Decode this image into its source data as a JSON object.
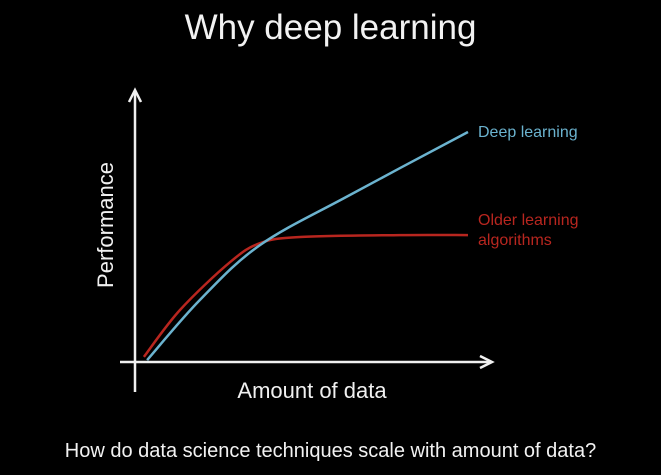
{
  "slide": {
    "title": "Why deep learning",
    "caption": "How do data science techniques scale with amount of data?"
  },
  "chart_data": {
    "type": "line",
    "title": "",
    "xlabel": "Amount of data",
    "ylabel": "Performance",
    "xlim": [
      0,
      10
    ],
    "ylim": [
      0,
      10
    ],
    "grid": false,
    "axis_color": "#f0f0f0",
    "series": [
      {
        "name": "Deep learning",
        "color": "#6bb3cf",
        "x": [
          0.34,
          1.83,
          3.52,
          6.06,
          9.38
        ],
        "y": [
          0.07,
          2.3,
          4.33,
          6.19,
          8.52
        ]
      },
      {
        "name": "Older learning algorithms",
        "color": "#b8261f",
        "x": [
          0.25,
          1.27,
          2.68,
          3.52,
          4.65,
          7.46,
          9.38
        ],
        "y": [
          0.19,
          1.93,
          3.7,
          4.4,
          4.63,
          4.7,
          4.7
        ]
      }
    ]
  }
}
